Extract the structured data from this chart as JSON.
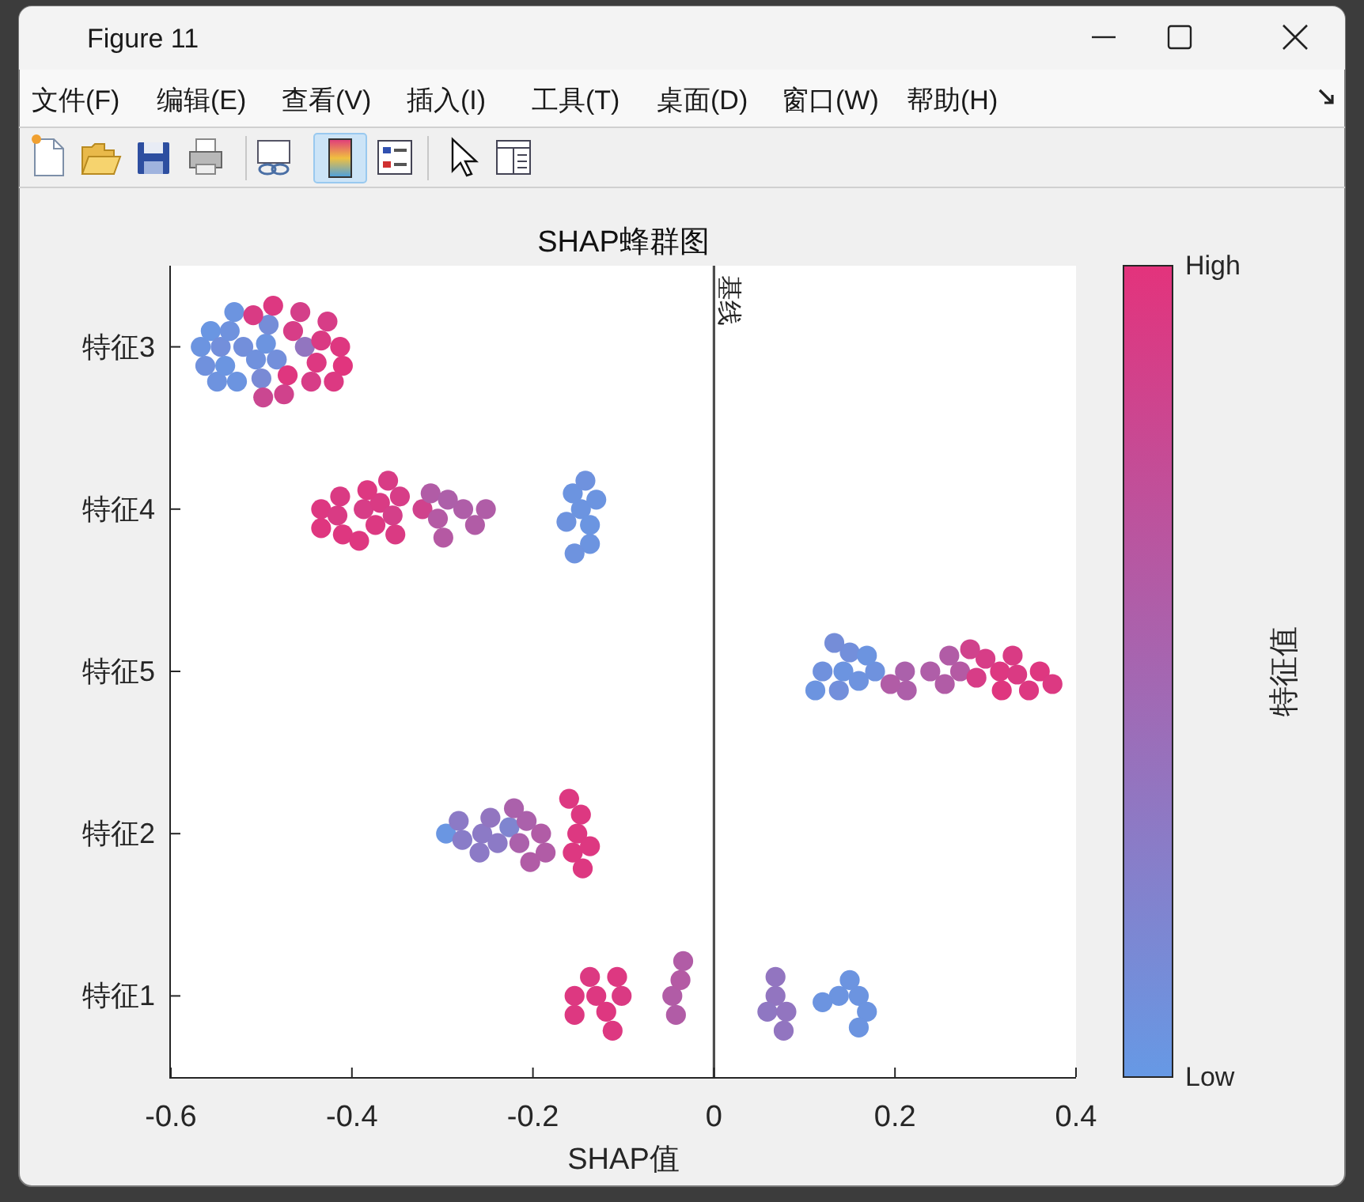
{
  "chart_data": {
    "type": "scatter",
    "orientation": "horizontal",
    "title": "SHAP蜂群图",
    "xlabel": "SHAP值",
    "clabel": "特征值",
    "annotations": [
      "Figure 11",
      "文件(F)",
      "编辑(E)",
      "查看(V)",
      "插入(I)",
      "工具(T)",
      "桌面(D)",
      "窗口(W)",
      "帮助(H)"
    ],
    "categories": [
      "特征3",
      "特征4",
      "特征5",
      "特征2",
      "特征1"
    ],
    "series": [
      {
        "x": [
          "特征3",
          "特征3",
          "特征3",
          "特征3",
          "特征3",
          "特征3",
          "特征3",
          "特征3",
          "特征3",
          "特征3",
          "特征3",
          "特征3",
          "特征3",
          "特征3",
          "特征3",
          "特征3",
          "特征3",
          "特征3",
          "特征3",
          "特征3",
          "特征3",
          "特征3",
          "特征3",
          "特征3",
          "特征3",
          "特征3",
          "特征3",
          "特征3",
          "特征3",
          "特征3",
          "特征4",
          "特征4",
          "特征4",
          "特征4",
          "特征4",
          "特征4",
          "特征4",
          "特征4",
          "特征4",
          "特征4",
          "特征4",
          "特征4",
          "特征4",
          "特征4",
          "特征4",
          "特征4",
          "特征4",
          "特征4",
          "特征4",
          "特征4",
          "特征4",
          "特征4",
          "特征4",
          "特征4",
          "特征4",
          "特征4",
          "特征4",
          "特征4",
          "特征4",
          "特征4",
          "特征5",
          "特征5",
          "特征5",
          "特征5",
          "特征5",
          "特征5",
          "特征5",
          "特征5",
          "特征5",
          "特征5",
          "特征5",
          "特征5",
          "特征5",
          "特征5",
          "特征5",
          "特征5",
          "特征5",
          "特征5",
          "特征5",
          "特征5",
          "特征5",
          "特征5",
          "特征5",
          "特征5",
          "特征5",
          "特征5",
          "特征2",
          "特征2",
          "特征2",
          "特征2",
          "特征2",
          "特征2",
          "特征2",
          "特征2",
          "特征2",
          "特征2",
          "特征2",
          "特征2",
          "特征2",
          "特征2",
          "特征2",
          "特征2",
          "特征2",
          "特征2",
          "特征2",
          "特征2",
          "特征1",
          "特征1",
          "特征1",
          "特征1",
          "特征1",
          "特征1",
          "特征1",
          "特征1",
          "特征1",
          "特征1",
          "特征1",
          "特征1",
          "特征1",
          "特征1",
          "特征1",
          "特征1",
          "特征1",
          "特征1",
          "特征1",
          "特征1",
          "特征1",
          "特征1",
          "特征1"
        ],
        "values": [
          -0.567,
          -0.562,
          -0.556,
          -0.549,
          -0.545,
          -0.54,
          -0.535,
          -0.527,
          -0.52,
          -0.53,
          -0.506,
          -0.495,
          -0.492,
          -0.483,
          -0.5,
          -0.452,
          -0.487,
          -0.465,
          -0.509,
          -0.471,
          -0.439,
          -0.434,
          -0.413,
          -0.41,
          -0.457,
          -0.427,
          -0.475,
          -0.445,
          -0.498,
          -0.42,
          -0.434,
          -0.416,
          -0.434,
          -0.413,
          -0.41,
          -0.387,
          -0.374,
          -0.369,
          -0.383,
          -0.355,
          -0.347,
          -0.352,
          -0.322,
          -0.36,
          -0.392,
          -0.305,
          -0.277,
          -0.313,
          -0.294,
          -0.264,
          -0.252,
          -0.299,
          -0.147,
          -0.163,
          -0.137,
          -0.156,
          -0.142,
          -0.137,
          -0.154,
          -0.13,
          0.143,
          0.12,
          0.112,
          0.138,
          0.16,
          0.178,
          0.15,
          0.169,
          0.133,
          0.211,
          0.213,
          0.195,
          0.239,
          0.255,
          0.272,
          0.26,
          0.29,
          0.316,
          0.335,
          0.36,
          0.374,
          0.318,
          0.33,
          0.3,
          0.348,
          0.283,
          -0.296,
          -0.278,
          -0.256,
          -0.239,
          -0.282,
          -0.259,
          -0.226,
          -0.247,
          -0.215,
          -0.191,
          -0.186,
          -0.207,
          -0.203,
          -0.221,
          -0.151,
          -0.156,
          -0.147,
          -0.16,
          -0.137,
          -0.145,
          -0.154,
          -0.13,
          -0.102,
          -0.119,
          -0.107,
          -0.154,
          -0.137,
          -0.112,
          -0.046,
          -0.042,
          -0.037,
          -0.034,
          0.068,
          0.059,
          0.08,
          0.068,
          0.077,
          0.16,
          0.169,
          0.138,
          0.12,
          0.15,
          0.16
        ],
        "cvalues": [
          0.05,
          0.08,
          0.03,
          0.06,
          0.1,
          0.04,
          0.07,
          0.05,
          0.1,
          0.05,
          0.08,
          0.05,
          0.12,
          0.1,
          0.15,
          0.35,
          0.95,
          0.9,
          0.92,
          0.97,
          0.95,
          0.93,
          0.96,
          0.98,
          0.88,
          0.9,
          0.85,
          0.9,
          0.8,
          0.94,
          0.95,
          0.92,
          0.97,
          0.93,
          0.96,
          0.9,
          0.94,
          0.92,
          0.95,
          0.88,
          0.9,
          0.93,
          0.85,
          0.91,
          0.96,
          0.62,
          0.58,
          0.6,
          0.57,
          0.6,
          0.59,
          0.63,
          0.05,
          0.06,
          0.04,
          0.05,
          0.07,
          0.05,
          0.06,
          0.05,
          0.05,
          0.08,
          0.05,
          0.1,
          0.06,
          0.07,
          0.1,
          0.05,
          0.12,
          0.55,
          0.57,
          0.6,
          0.58,
          0.6,
          0.62,
          0.6,
          0.9,
          0.95,
          0.93,
          0.96,
          0.94,
          0.97,
          0.92,
          0.9,
          0.95,
          0.85,
          0.03,
          0.28,
          0.3,
          0.3,
          0.3,
          0.3,
          0.2,
          0.35,
          0.55,
          0.6,
          0.6,
          0.55,
          0.6,
          0.55,
          0.95,
          0.95,
          0.95,
          0.95,
          0.95,
          0.95,
          0.95,
          0.95,
          0.93,
          0.96,
          0.95,
          0.95,
          0.94,
          0.95,
          0.6,
          0.6,
          0.62,
          0.6,
          0.35,
          0.33,
          0.35,
          0.35,
          0.35,
          0.05,
          0.05,
          0.05,
          0.05,
          0.05,
          0.05
        ]
      }
    ],
    "xlim": [
      -0.6,
      0.4
    ],
    "xticks": [
      -0.6,
      -0.4,
      -0.2,
      0,
      0.2,
      0.4
    ],
    "clim": [
      0,
      1
    ],
    "cticks": [
      {
        "value": 0,
        "label": "Low"
      },
      {
        "value": 1,
        "label": "High"
      }
    ],
    "ref_lines": [
      {
        "axis": "x",
        "value": 0,
        "label": "基线",
        "color": "#4d4d4d"
      }
    ],
    "marker": "circle"
  }
}
